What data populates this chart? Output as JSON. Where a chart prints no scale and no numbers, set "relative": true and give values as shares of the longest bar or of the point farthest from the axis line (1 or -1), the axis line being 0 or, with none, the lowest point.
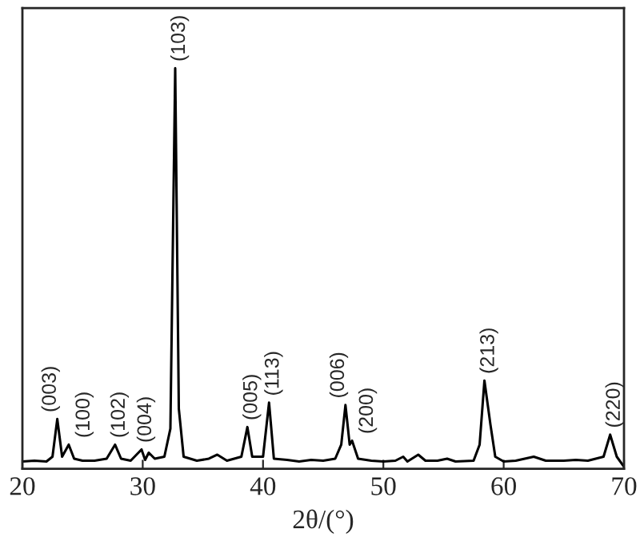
{
  "chart_data": {
    "type": "line",
    "relative": true,
    "xlabel": "2θ/(°)",
    "xlim": [
      20,
      70
    ],
    "xticks": [
      20,
      30,
      40,
      50,
      60,
      70
    ],
    "grid": false,
    "marker": "none",
    "line_style": "solid",
    "series": [
      {
        "color": "#000000",
        "x": [
          20.0,
          21.0,
          22.0,
          22.5,
          22.9,
          23.3,
          23.85,
          24.3,
          25,
          26,
          27.0,
          27.7,
          28.2,
          29,
          29.9,
          30.2,
          30.5,
          31,
          31.8,
          32.3,
          32.7,
          33.0,
          33.4,
          34.5,
          35.5,
          36.2,
          37,
          38.2,
          38.7,
          39.1,
          40.0,
          40.5,
          40.9,
          42,
          43,
          44,
          45,
          46.0,
          46.5,
          46.85,
          47.2,
          47.4,
          47.9,
          49,
          50,
          51,
          51.65,
          52,
          52.9,
          53.5,
          54.5,
          55.3,
          56,
          57.5,
          58.0,
          58.4,
          58.9,
          59.3,
          60,
          61,
          62.5,
          63.5,
          65,
          66,
          67,
          68.3,
          68.85,
          69.4,
          70
        ],
        "values": [
          0.018,
          0.02,
          0.018,
          0.03,
          0.124,
          0.03,
          0.06,
          0.025,
          0.02,
          0.02,
          0.025,
          0.06,
          0.025,
          0.02,
          0.048,
          0.022,
          0.04,
          0.025,
          0.03,
          0.1,
          1.0,
          0.15,
          0.03,
          0.02,
          0.025,
          0.035,
          0.02,
          0.03,
          0.104,
          0.03,
          0.03,
          0.165,
          0.025,
          0.022,
          0.018,
          0.022,
          0.02,
          0.025,
          0.06,
          0.159,
          0.06,
          0.07,
          0.025,
          0.02,
          0.018,
          0.02,
          0.03,
          0.018,
          0.035,
          0.02,
          0.02,
          0.025,
          0.018,
          0.02,
          0.06,
          0.22,
          0.11,
          0.03,
          0.018,
          0.02,
          0.03,
          0.02,
          0.02,
          0.022,
          0.02,
          0.03,
          0.085,
          0.03,
          0.005
        ]
      }
    ],
    "annotations": [
      {
        "text": "(003)",
        "x": 22.9,
        "y": 0.124
      },
      {
        "text": "(100)",
        "x": 23.85,
        "y": 0.06
      },
      {
        "text": "(102)",
        "x": 27.7,
        "y": 0.06
      },
      {
        "text": "(004)",
        "x": 29.9,
        "y": 0.048
      },
      {
        "text": "(103)",
        "x": 32.7,
        "y": 1.0
      },
      {
        "text": "(005)",
        "x": 38.7,
        "y": 0.104
      },
      {
        "text": "(113)",
        "x": 40.5,
        "y": 0.165
      },
      {
        "text": "(006)",
        "x": 46.85,
        "y": 0.159
      },
      {
        "text": "(200)",
        "x": 47.4,
        "y": 0.07
      },
      {
        "text": "(213)",
        "x": 58.4,
        "y": 0.22
      },
      {
        "text": "(220)",
        "x": 68.85,
        "y": 0.085
      }
    ]
  }
}
